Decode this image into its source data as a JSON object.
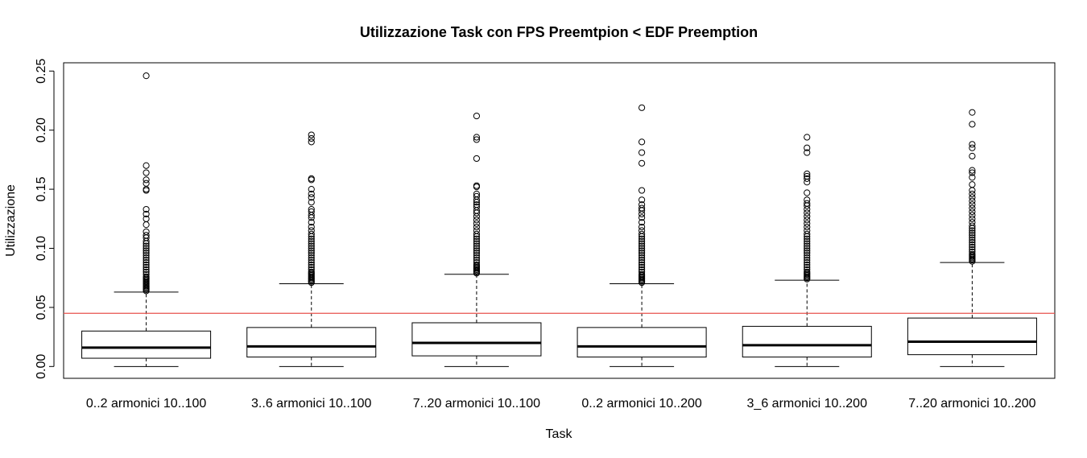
{
  "chart_data": {
    "type": "boxplot",
    "title": "Utilizzazione Task con FPS Preemtpion < EDF Preemption",
    "xlabel": "Task",
    "ylabel": "Utilizzazione",
    "ylim": [
      -0.01,
      0.257
    ],
    "yticks": [
      "0.00",
      "0.05",
      "0.10",
      "0.15",
      "0.20",
      "0.25"
    ],
    "ytick_values": [
      0.0,
      0.05,
      0.1,
      0.15,
      0.2,
      0.25
    ],
    "reference_line": {
      "y": 0.045,
      "color": "#e8534e"
    },
    "categories": [
      "0..2 armonici 10..100",
      "3..6 armonici 10..100",
      "7..20 armonici 10..100",
      "0..2 armonici 10..200",
      "3_6 armonici 10..200",
      "7..20 armonici 10..200"
    ],
    "boxes": [
      {
        "whisker_low": 0.0,
        "q1": 0.007,
        "median": 0.016,
        "q3": 0.03,
        "whisker_high": 0.063,
        "outliers": [
          0.246,
          0.17,
          0.164,
          0.158,
          0.155,
          0.15,
          0.149,
          0.133,
          0.129,
          0.125,
          0.12,
          0.114,
          0.111,
          0.109,
          0.106,
          0.104,
          0.102,
          0.1,
          0.098,
          0.096,
          0.094,
          0.092,
          0.09,
          0.088,
          0.086,
          0.084,
          0.082,
          0.08,
          0.078,
          0.076,
          0.075,
          0.074,
          0.073,
          0.072,
          0.071,
          0.07,
          0.069,
          0.068,
          0.067,
          0.066,
          0.065,
          0.064
        ]
      },
      {
        "whisker_low": 0.0,
        "q1": 0.008,
        "median": 0.017,
        "q3": 0.033,
        "whisker_high": 0.07,
        "outliers": [
          0.196,
          0.193,
          0.19,
          0.159,
          0.158,
          0.15,
          0.146,
          0.143,
          0.139,
          0.133,
          0.131,
          0.128,
          0.126,
          0.122,
          0.118,
          0.115,
          0.112,
          0.11,
          0.108,
          0.106,
          0.104,
          0.102,
          0.1,
          0.098,
          0.096,
          0.094,
          0.092,
          0.09,
          0.088,
          0.086,
          0.084,
          0.082,
          0.08,
          0.079,
          0.078,
          0.077,
          0.076,
          0.075,
          0.074,
          0.073,
          0.072,
          0.071
        ]
      },
      {
        "whisker_low": 0.0,
        "q1": 0.009,
        "median": 0.02,
        "q3": 0.037,
        "whisker_high": 0.078,
        "outliers": [
          0.212,
          0.194,
          0.192,
          0.176,
          0.153,
          0.152,
          0.146,
          0.144,
          0.141,
          0.139,
          0.137,
          0.135,
          0.132,
          0.13,
          0.127,
          0.124,
          0.121,
          0.118,
          0.115,
          0.112,
          0.11,
          0.108,
          0.106,
          0.104,
          0.102,
          0.1,
          0.098,
          0.096,
          0.094,
          0.092,
          0.09,
          0.088,
          0.086,
          0.085,
          0.084,
          0.083,
          0.082,
          0.081,
          0.08,
          0.079
        ]
      },
      {
        "whisker_low": 0.0,
        "q1": 0.008,
        "median": 0.017,
        "q3": 0.033,
        "whisker_high": 0.07,
        "outliers": [
          0.219,
          0.19,
          0.181,
          0.172,
          0.149,
          0.141,
          0.137,
          0.134,
          0.132,
          0.129,
          0.126,
          0.122,
          0.118,
          0.115,
          0.112,
          0.11,
          0.108,
          0.106,
          0.104,
          0.102,
          0.1,
          0.098,
          0.096,
          0.094,
          0.092,
          0.09,
          0.088,
          0.086,
          0.084,
          0.082,
          0.08,
          0.078,
          0.077,
          0.076,
          0.075,
          0.074,
          0.073,
          0.072,
          0.071
        ]
      },
      {
        "whisker_low": 0.0,
        "q1": 0.008,
        "median": 0.018,
        "q3": 0.034,
        "whisker_high": 0.073,
        "outliers": [
          0.194,
          0.185,
          0.181,
          0.163,
          0.161,
          0.159,
          0.156,
          0.147,
          0.141,
          0.138,
          0.136,
          0.133,
          0.13,
          0.127,
          0.124,
          0.121,
          0.118,
          0.115,
          0.112,
          0.11,
          0.108,
          0.106,
          0.104,
          0.102,
          0.1,
          0.098,
          0.096,
          0.094,
          0.092,
          0.09,
          0.088,
          0.086,
          0.084,
          0.082,
          0.08,
          0.079,
          0.078,
          0.077,
          0.076,
          0.075,
          0.074
        ]
      },
      {
        "whisker_low": 0.0,
        "q1": 0.01,
        "median": 0.021,
        "q3": 0.041,
        "whisker_high": 0.088,
        "outliers": [
          0.215,
          0.205,
          0.188,
          0.185,
          0.178,
          0.166,
          0.164,
          0.16,
          0.154,
          0.149,
          0.146,
          0.143,
          0.14,
          0.137,
          0.134,
          0.131,
          0.128,
          0.125,
          0.122,
          0.119,
          0.117,
          0.115,
          0.113,
          0.111,
          0.109,
          0.107,
          0.105,
          0.103,
          0.101,
          0.099,
          0.097,
          0.095,
          0.094,
          0.093,
          0.092,
          0.091,
          0.09,
          0.089
        ]
      }
    ]
  }
}
